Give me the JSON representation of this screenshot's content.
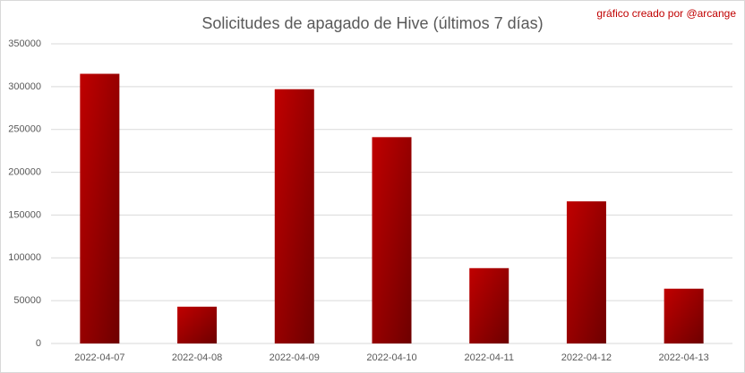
{
  "chart_data": {
    "type": "bar",
    "title": "Solicitudes de apagado de Hive (últimos 7 días)",
    "annotation": "gráfico creado por @arcange",
    "categories": [
      "2022-04-07",
      "2022-04-08",
      "2022-04-09",
      "2022-04-10",
      "2022-04-11",
      "2022-04-12",
      "2022-04-13"
    ],
    "values": [
      315000,
      43000,
      297000,
      241000,
      88000,
      166000,
      64000
    ],
    "color": "#c00000",
    "gradient_color": "#6e0000",
    "ylim": [
      0,
      350000
    ],
    "yticks": [
      0,
      50000,
      100000,
      150000,
      200000,
      250000,
      300000,
      350000
    ],
    "grid": true
  }
}
